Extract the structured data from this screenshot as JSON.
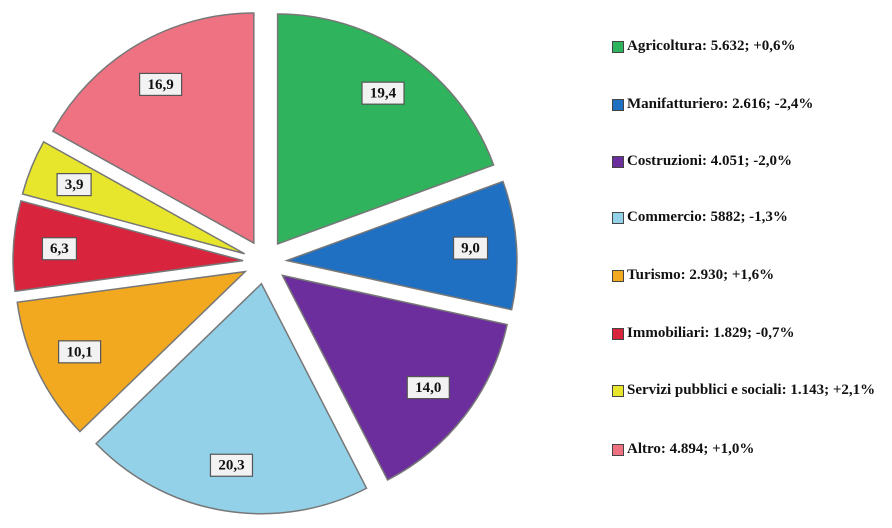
{
  "chart_data": {
    "type": "pie",
    "categories": [
      "Agricoltura: 5.632; +0,6%",
      "Manifatturiero: 2.616; -2,4%",
      "Costruzioni: 4.051; -2,0%",
      "Commercio: 5882; -1,3%",
      "Turismo: 2.930; +1,6%",
      "Immobiliari: 1.829; -0,7%",
      "Servizi pubblici e sociali: 1.143; +2,1%",
      "Altro: 4.894; +1,0%"
    ],
    "values": [
      19.4,
      9.0,
      14.0,
      20.3,
      10.1,
      6.3,
      3.9,
      16.9
    ],
    "value_labels": [
      "19,4",
      "9,0",
      "14,0",
      "20,3",
      "10,1",
      "6,3",
      "3,9",
      "16,9"
    ],
    "colors": [
      "#2fb35c",
      "#1f6fc2",
      "#6b2e9c",
      "#92d1e8",
      "#f3a91f",
      "#d9243e",
      "#e8e62c",
      "#ef7282"
    ]
  }
}
